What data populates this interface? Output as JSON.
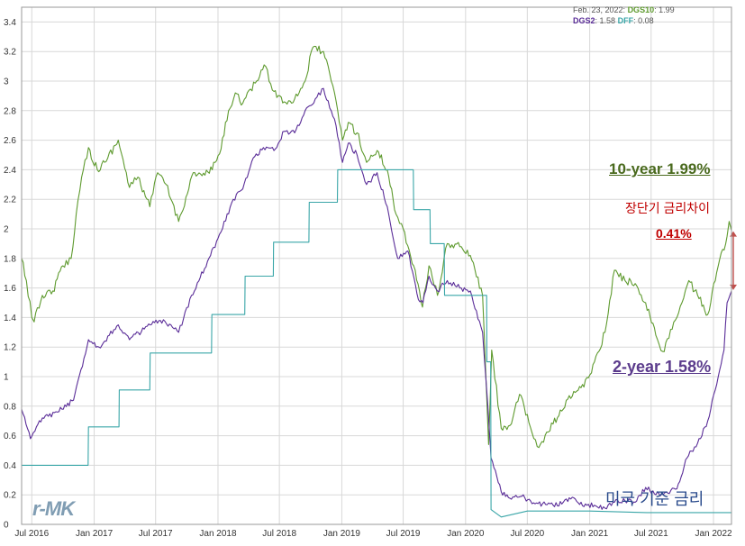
{
  "header": {
    "date": "Feb. 23, 2022:",
    "dgs10_label": "DGS10",
    "dgs10_value": "1.99",
    "dgs2_label": "DGS2",
    "dgs2_value": "1.58",
    "dff_label": "DFF",
    "dff_value": "0.08"
  },
  "annotations": {
    "ten_year": "10-year 1.99%",
    "spread_title": "장단기 금리차이",
    "spread_value": "0.41%",
    "two_year": "2-year 1.58%",
    "fed_rate": "미국 기준 금리"
  },
  "logo": "r-MK",
  "colors": {
    "dgs10": "#5e9a2e",
    "dgs2": "#5a2d98",
    "dff": "#3aa6a8",
    "spread_arrow": "#c0504d"
  },
  "chart_data": {
    "type": "line",
    "x_tick_labels": [
      "Jul 2016",
      "Jan 2017",
      "Jul 2017",
      "Jan 2018",
      "Jul 2018",
      "Jan 2019",
      "Jul 2019",
      "Jan 2020",
      "Jul 2020",
      "Jan 2021",
      "Jul 2021",
      "Jan 2022"
    ],
    "y_ticks": [
      0,
      0.2,
      0.4,
      0.6,
      0.8,
      1,
      1.2,
      1.4,
      1.6,
      1.8,
      2,
      2.2,
      2.4,
      2.6,
      2.8,
      3,
      3.2,
      3.4
    ],
    "xlim": [
      "2016-06-01",
      "2022-02-23"
    ],
    "ylim": [
      0,
      3.5
    ],
    "grid": true,
    "series": [
      {
        "name": "DGS10",
        "x": [
          "2016-06-01",
          "2016-06-15",
          "2016-07-01",
          "2016-07-08",
          "2016-08-01",
          "2016-09-01",
          "2016-10-01",
          "2016-10-25",
          "2016-11-09",
          "2016-11-25",
          "2016-12-15",
          "2017-01-10",
          "2017-02-01",
          "2017-03-13",
          "2017-04-15",
          "2017-05-10",
          "2017-06-14",
          "2017-07-07",
          "2017-08-01",
          "2017-09-07",
          "2017-10-20",
          "2017-11-15",
          "2017-12-15",
          "2018-01-10",
          "2018-02-01",
          "2018-02-21",
          "2018-03-15",
          "2018-04-25",
          "2018-05-17",
          "2018-06-15",
          "2018-07-15",
          "2018-08-15",
          "2018-09-15",
          "2018-10-08",
          "2018-11-08",
          "2018-12-01",
          "2018-12-20",
          "2019-01-03",
          "2019-01-20",
          "2019-02-15",
          "2019-03-15",
          "2019-04-15",
          "2019-05-15",
          "2019-06-10",
          "2019-07-01",
          "2019-08-01",
          "2019-08-27",
          "2019-09-15",
          "2019-10-10",
          "2019-11-08",
          "2019-12-15",
          "2020-01-15",
          "2020-02-20",
          "2020-03-09",
          "2020-03-18",
          "2020-04-15",
          "2020-05-15",
          "2020-06-08",
          "2020-07-15",
          "2020-08-04",
          "2020-09-15",
          "2020-10-15",
          "2020-11-15",
          "2020-12-15",
          "2021-01-15",
          "2021-02-15",
          "2021-03-15",
          "2021-04-15",
          "2021-05-15",
          "2021-06-15",
          "2021-07-15",
          "2021-08-04",
          "2021-09-01",
          "2021-09-30",
          "2021-10-20",
          "2021-11-15",
          "2021-12-15",
          "2022-01-15",
          "2022-02-10",
          "2022-02-16",
          "2022-02-23"
        ],
        "y": [
          1.8,
          1.65,
          1.4,
          1.37,
          1.55,
          1.58,
          1.75,
          1.8,
          2.1,
          2.35,
          2.55,
          2.4,
          2.45,
          2.6,
          2.28,
          2.35,
          2.15,
          2.38,
          2.3,
          2.05,
          2.38,
          2.36,
          2.4,
          2.54,
          2.8,
          2.92,
          2.85,
          3.0,
          3.11,
          2.93,
          2.86,
          2.88,
          3.0,
          3.23,
          3.2,
          3.0,
          2.8,
          2.6,
          2.72,
          2.65,
          2.45,
          2.53,
          2.4,
          2.1,
          2.0,
          1.75,
          1.47,
          1.75,
          1.55,
          1.9,
          1.88,
          1.82,
          1.55,
          0.54,
          1.18,
          0.65,
          0.68,
          0.88,
          0.62,
          0.52,
          0.68,
          0.78,
          0.9,
          0.93,
          1.1,
          1.3,
          1.72,
          1.65,
          1.63,
          1.5,
          1.28,
          1.17,
          1.32,
          1.5,
          1.65,
          1.55,
          1.42,
          1.75,
          1.95,
          2.05,
          1.99
        ]
      },
      {
        "name": "DGS2",
        "x": [
          "2016-06-01",
          "2016-06-27",
          "2016-08-01",
          "2016-09-15",
          "2016-11-01",
          "2016-12-15",
          "2017-01-15",
          "2017-03-13",
          "2017-04-15",
          "2017-06-15",
          "2017-07-15",
          "2017-09-07",
          "2017-10-15",
          "2017-12-01",
          "2018-01-10",
          "2018-02-15",
          "2018-03-15",
          "2018-04-15",
          "2018-05-15",
          "2018-06-15",
          "2018-07-15",
          "2018-08-15",
          "2018-09-15",
          "2018-10-15",
          "2018-11-08",
          "2018-12-15",
          "2019-01-03",
          "2019-01-20",
          "2019-02-15",
          "2019-03-15",
          "2019-04-15",
          "2019-05-15",
          "2019-06-15",
          "2019-07-15",
          "2019-08-15",
          "2019-08-28",
          "2019-09-15",
          "2019-10-10",
          "2019-11-08",
          "2019-12-15",
          "2020-01-15",
          "2020-02-20",
          "2020-03-02",
          "2020-03-16",
          "2020-04-15",
          "2020-05-15",
          "2020-06-15",
          "2020-07-15",
          "2020-08-15",
          "2020-09-15",
          "2020-10-15",
          "2020-11-15",
          "2020-12-15",
          "2021-01-15",
          "2021-02-15",
          "2021-03-15",
          "2021-04-15",
          "2021-05-15",
          "2021-06-15",
          "2021-07-15",
          "2021-08-15",
          "2021-09-15",
          "2021-10-15",
          "2021-11-15",
          "2021-12-15",
          "2022-01-15",
          "2022-02-01",
          "2022-02-10",
          "2022-02-23"
        ],
        "y": [
          0.78,
          0.58,
          0.72,
          0.76,
          0.84,
          1.25,
          1.2,
          1.35,
          1.25,
          1.35,
          1.38,
          1.3,
          1.55,
          1.78,
          1.98,
          2.2,
          2.27,
          2.48,
          2.55,
          2.53,
          2.66,
          2.65,
          2.8,
          2.88,
          2.95,
          2.7,
          2.45,
          2.58,
          2.5,
          2.3,
          2.38,
          2.15,
          1.8,
          1.85,
          1.52,
          1.5,
          1.68,
          1.58,
          1.65,
          1.6,
          1.58,
          1.3,
          0.95,
          0.45,
          0.22,
          0.17,
          0.19,
          0.14,
          0.14,
          0.13,
          0.15,
          0.18,
          0.12,
          0.13,
          0.11,
          0.15,
          0.16,
          0.15,
          0.25,
          0.2,
          0.22,
          0.24,
          0.45,
          0.55,
          0.7,
          1.0,
          1.18,
          1.5,
          1.58
        ]
      },
      {
        "name": "DFF",
        "x": [
          "2016-06-01",
          "2016-12-14",
          "2016-12-15",
          "2017-03-15",
          "2017-03-16",
          "2017-06-14",
          "2017-06-15",
          "2017-12-13",
          "2017-12-14",
          "2018-03-21",
          "2018-03-22",
          "2018-06-13",
          "2018-06-14",
          "2018-09-26",
          "2018-09-27",
          "2018-12-19",
          "2018-12-20",
          "2019-07-31",
          "2019-08-01",
          "2019-09-18",
          "2019-09-19",
          "2019-10-30",
          "2019-10-31",
          "2020-03-03",
          "2020-03-04",
          "2020-03-15",
          "2020-03-16",
          "2020-04-15",
          "2020-07-01",
          "2021-01-01",
          "2021-06-17",
          "2022-02-23"
        ],
        "y": [
          0.4,
          0.4,
          0.66,
          0.66,
          0.91,
          0.91,
          1.16,
          1.16,
          1.42,
          1.42,
          1.68,
          1.68,
          1.91,
          1.91,
          2.18,
          2.18,
          2.4,
          2.4,
          2.13,
          2.13,
          1.9,
          1.9,
          1.55,
          1.55,
          1.1,
          1.1,
          0.1,
          0.05,
          0.09,
          0.09,
          0.08,
          0.08
        ]
      }
    ]
  }
}
